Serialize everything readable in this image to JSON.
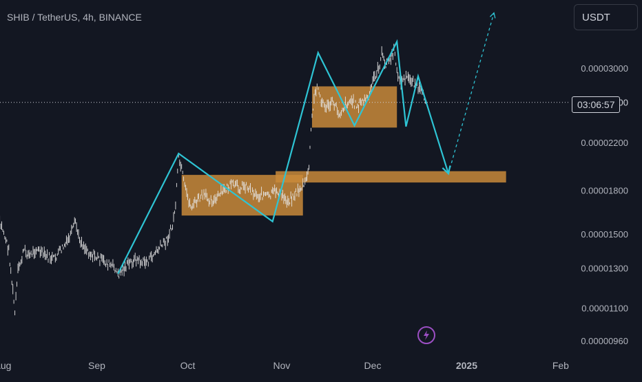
{
  "header": {
    "symbol_title": "SHIB / TetherUS, 4h, BINANCE",
    "currency_button": "USDT",
    "countdown": "03:06:57",
    "current_price_partial": "2600"
  },
  "icons": {
    "flash": "lightning-bolt-icon"
  },
  "colors": {
    "background": "#131722",
    "candles": "#e6e6e6",
    "zigzag": "#2ec4d4",
    "zones": "#c9893a",
    "text": "#b2b5be",
    "flash_icon": "#9c4fc4"
  },
  "chart_data": {
    "type": "line",
    "title": "SHIB / TetherUS, 4h, BINANCE",
    "xlabel": "",
    "ylabel": "",
    "y_scale": "log",
    "grid": false,
    "x_ticks": [
      "Aug",
      "Sep",
      "Oct",
      "Nov",
      "Dec",
      "2025",
      "Feb"
    ],
    "x_tick_dates": [
      "2024-08-01",
      "2024-09-01",
      "2024-10-01",
      "2024-11-01",
      "2024-12-01",
      "2025-01-01",
      "2025-02-01"
    ],
    "y_ticks": [
      "0.00003000",
      "0.00002200",
      "0.00001800",
      "0.00001500",
      "0.00001300",
      "0.00001100",
      "0.00000960"
    ],
    "y_tick_values": [
      3e-05,
      2.2e-05,
      1.8e-05,
      1.5e-05,
      1.3e-05,
      1.1e-05,
      9.6e-06
    ],
    "price_line": 2.6e-05,
    "price_series": [
      [
        "2024-07-30",
        1.6e-05
      ],
      [
        "2024-08-01",
        1.53e-05
      ],
      [
        "2024-08-03",
        1.4e-05
      ],
      [
        "2024-08-05",
        1.08e-05
      ],
      [
        "2024-08-06",
        1.28e-05
      ],
      [
        "2024-08-08",
        1.4e-05
      ],
      [
        "2024-08-10",
        1.37e-05
      ],
      [
        "2024-08-12",
        1.41e-05
      ],
      [
        "2024-08-14",
        1.38e-05
      ],
      [
        "2024-08-16",
        1.36e-05
      ],
      [
        "2024-08-18",
        1.35e-05
      ],
      [
        "2024-08-20",
        1.4e-05
      ],
      [
        "2024-08-22",
        1.44e-05
      ],
      [
        "2024-08-24",
        1.52e-05
      ],
      [
        "2024-08-25",
        1.58e-05
      ],
      [
        "2024-08-26",
        1.48e-05
      ],
      [
        "2024-08-28",
        1.42e-05
      ],
      [
        "2024-08-30",
        1.38e-05
      ],
      [
        "2024-09-01",
        1.36e-05
      ],
      [
        "2024-09-03",
        1.34e-05
      ],
      [
        "2024-09-05",
        1.32e-05
      ],
      [
        "2024-09-07",
        1.3e-05
      ],
      [
        "2024-09-08",
        1.26e-05
      ],
      [
        "2024-09-10",
        1.3e-05
      ],
      [
        "2024-09-12",
        1.33e-05
      ],
      [
        "2024-09-14",
        1.35e-05
      ],
      [
        "2024-09-16",
        1.33e-05
      ],
      [
        "2024-09-18",
        1.34e-05
      ],
      [
        "2024-09-20",
        1.38e-05
      ],
      [
        "2024-09-22",
        1.42e-05
      ],
      [
        "2024-09-24",
        1.46e-05
      ],
      [
        "2024-09-26",
        1.55e-05
      ],
      [
        "2024-09-27",
        1.7e-05
      ],
      [
        "2024-09-28",
        2.05e-05
      ],
      [
        "2024-09-29",
        1.96e-05
      ],
      [
        "2024-09-30",
        1.82e-05
      ],
      [
        "2024-10-02",
        1.68e-05
      ],
      [
        "2024-10-04",
        1.72e-05
      ],
      [
        "2024-10-06",
        1.76e-05
      ],
      [
        "2024-10-08",
        1.74e-05
      ],
      [
        "2024-10-10",
        1.72e-05
      ],
      [
        "2024-10-12",
        1.78e-05
      ],
      [
        "2024-10-14",
        1.82e-05
      ],
      [
        "2024-10-16",
        1.84e-05
      ],
      [
        "2024-10-18",
        1.82e-05
      ],
      [
        "2024-10-20",
        1.84e-05
      ],
      [
        "2024-10-22",
        1.8e-05
      ],
      [
        "2024-10-24",
        1.76e-05
      ],
      [
        "2024-10-26",
        1.77e-05
      ],
      [
        "2024-10-28",
        1.75e-05
      ],
      [
        "2024-10-30",
        1.8e-05
      ],
      [
        "2024-11-01",
        1.76e-05
      ],
      [
        "2024-11-03",
        1.72e-05
      ],
      [
        "2024-11-05",
        1.76e-05
      ],
      [
        "2024-11-07",
        1.81e-05
      ],
      [
        "2024-11-09",
        1.86e-05
      ],
      [
        "2024-11-10",
        2e-05
      ],
      [
        "2024-11-11",
        2.45e-05
      ],
      [
        "2024-11-12",
        2.7e-05
      ],
      [
        "2024-11-13",
        2.8e-05
      ],
      [
        "2024-11-14",
        2.6e-05
      ],
      [
        "2024-11-16",
        2.55e-05
      ],
      [
        "2024-11-18",
        2.6e-05
      ],
      [
        "2024-11-20",
        2.48e-05
      ],
      [
        "2024-11-22",
        2.58e-05
      ],
      [
        "2024-11-24",
        2.62e-05
      ],
      [
        "2024-11-26",
        2.56e-05
      ],
      [
        "2024-11-28",
        2.62e-05
      ],
      [
        "2024-11-30",
        2.66e-05
      ],
      [
        "2024-12-01",
        2.85e-05
      ],
      [
        "2024-12-03",
        3e-05
      ],
      [
        "2024-12-04",
        3.18e-05
      ],
      [
        "2024-12-05",
        3.05e-05
      ],
      [
        "2024-12-07",
        3.12e-05
      ],
      [
        "2024-12-08",
        3.22e-05
      ],
      [
        "2024-12-09",
        3e-05
      ],
      [
        "2024-12-10",
        2.82e-05
      ],
      [
        "2024-12-12",
        2.88e-05
      ],
      [
        "2024-12-14",
        2.86e-05
      ],
      [
        "2024-12-16",
        2.76e-05
      ],
      [
        "2024-12-18",
        2.65e-05
      ],
      [
        "2024-12-19",
        2.6e-05
      ]
    ],
    "zones": [
      {
        "x": [
          "2024-09-29",
          "2024-11-08"
        ],
        "y": [
          1.62e-05,
          1.92e-05
        ]
      },
      {
        "x": [
          "2024-11-11",
          "2024-12-09"
        ],
        "y": [
          2.34e-05,
          2.78e-05
        ]
      },
      {
        "x": [
          "2024-10-30",
          "2025-01-14"
        ],
        "y": [
          1.86e-05,
          1.95e-05
        ]
      }
    ],
    "zigzag": [
      [
        "2024-09-08",
        1.27e-05
      ],
      [
        "2024-09-28",
        2.1e-05
      ],
      [
        "2024-10-29",
        1.58e-05
      ],
      [
        "2024-11-13",
        3.2e-05
      ],
      [
        "2024-11-25",
        2.36e-05
      ],
      [
        "2024-12-09",
        3.35e-05
      ],
      [
        "2024-12-12",
        2.35e-05
      ],
      [
        "2024-12-16",
        2.9e-05
      ],
      [
        "2024-12-26",
        1.93e-05
      ]
    ],
    "projection": [
      [
        "2024-12-26",
        1.93e-05
      ],
      [
        "2025-01-10",
        3.78e-05
      ]
    ]
  }
}
